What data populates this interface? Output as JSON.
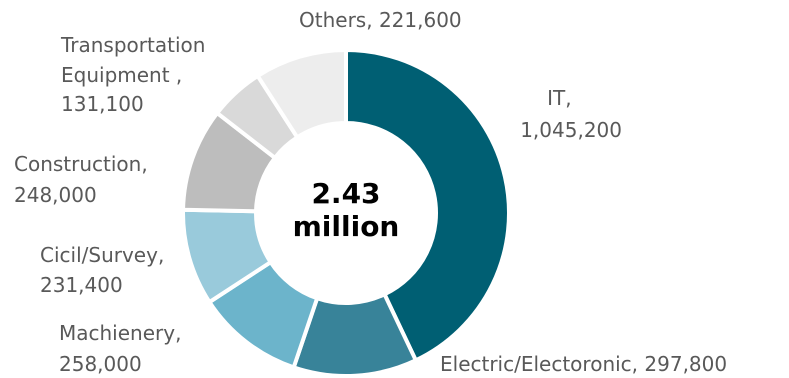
{
  "chart_data": {
    "type": "pie",
    "donut": true,
    "center_label": [
      "2.43",
      "million"
    ],
    "slices": [
      {
        "label": "IT",
        "value": 1045200,
        "value_text": "1,045,200",
        "color": "#005f73"
      },
      {
        "label": "Electric/Electoronic",
        "value": 297800,
        "value_text": "297,800",
        "color": "#388399"
      },
      {
        "label": "Machienery",
        "value": 258000,
        "value_text": "258,000",
        "color": "#6cb4cb"
      },
      {
        "label": "Cicil/Survey",
        "value": 231400,
        "value_text": "231,400",
        "color": "#99cadb"
      },
      {
        "label": "Construction",
        "value": 248000,
        "value_text": "248,000",
        "color": "#bdbdbd"
      },
      {
        "label": "Transportation Equipment ",
        "value": 131100,
        "value_text": "131,100",
        "color": "#d9d9d9"
      },
      {
        "label": "Others",
        "value": 221600,
        "value_text": "221,600",
        "color": "#ededed"
      }
    ],
    "legend": "none",
    "start_angle_deg": 0,
    "direction": "clockwise"
  }
}
